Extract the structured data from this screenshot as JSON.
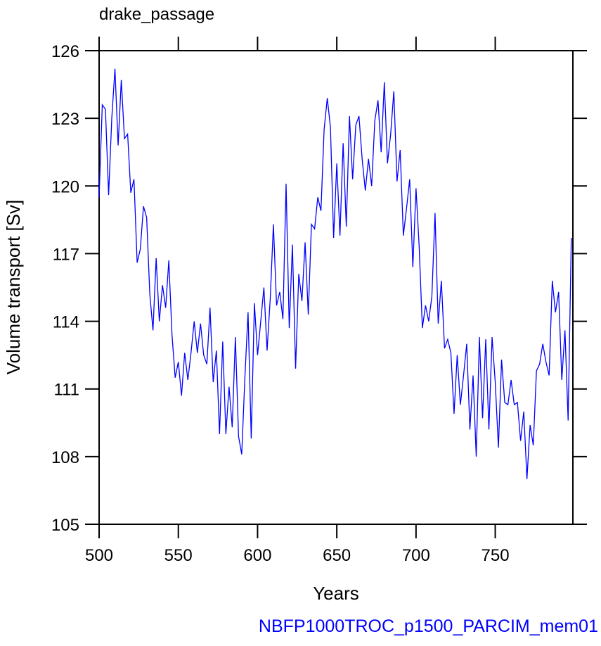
{
  "chart_data": {
    "type": "line",
    "title": "drake_passage",
    "xlabel": "Years",
    "ylabel": "Volume transport [Sv]",
    "annotation": "NBFP1000TROC_p1500_PARCIM_mem01",
    "xlim": [
      500,
      799
    ],
    "ylim": [
      105,
      126
    ],
    "xticks": [
      500,
      550,
      600,
      650,
      700,
      750
    ],
    "yticks": [
      105,
      108,
      111,
      114,
      117,
      120,
      123,
      126
    ],
    "x": [
      500,
      502,
      504,
      506,
      508,
      510,
      512,
      514,
      516,
      518,
      520,
      522,
      524,
      526,
      528,
      530,
      532,
      534,
      536,
      538,
      540,
      542,
      544,
      546,
      548,
      550,
      552,
      554,
      556,
      558,
      560,
      562,
      564,
      566,
      568,
      570,
      572,
      574,
      576,
      578,
      580,
      582,
      584,
      586,
      588,
      590,
      592,
      594,
      596,
      598,
      600,
      602,
      604,
      606,
      608,
      610,
      612,
      614,
      616,
      618,
      620,
      622,
      624,
      626,
      628,
      630,
      632,
      634,
      636,
      638,
      640,
      642,
      644,
      646,
      648,
      650,
      652,
      654,
      656,
      658,
      660,
      662,
      664,
      666,
      668,
      670,
      672,
      674,
      676,
      678,
      680,
      682,
      684,
      686,
      688,
      690,
      692,
      694,
      696,
      698,
      700,
      702,
      704,
      706,
      708,
      710,
      712,
      714,
      716,
      718,
      720,
      722,
      724,
      726,
      728,
      730,
      732,
      734,
      736,
      738,
      740,
      742,
      744,
      746,
      748,
      750,
      752,
      754,
      756,
      758,
      760,
      762,
      764,
      766,
      768,
      770,
      772,
      774,
      776,
      778,
      780,
      782,
      784,
      786,
      788,
      790,
      792,
      794,
      796,
      798
    ],
    "series": [
      {
        "color": "#0000ff",
        "values": [
          119.5,
          123.6,
          123.4,
          119.6,
          123.0,
          125.2,
          121.8,
          124.7,
          122.1,
          122.3,
          119.7,
          120.3,
          116.6,
          117.2,
          119.1,
          118.6,
          115.2,
          113.6,
          116.8,
          114.0,
          115.6,
          114.6,
          116.7,
          113.4,
          111.5,
          112.2,
          110.7,
          112.6,
          111.4,
          112.6,
          114.0,
          112.6,
          113.9,
          112.5,
          112.1,
          114.6,
          111.3,
          112.7,
          109.0,
          113.1,
          109.0,
          111.1,
          109.3,
          113.3,
          108.9,
          108.1,
          111.5,
          114.4,
          108.8,
          114.8,
          112.5,
          114.0,
          115.5,
          112.7,
          115.0,
          118.3,
          114.7,
          115.3,
          114.1,
          120.1,
          113.7,
          117.4,
          111.9,
          116.1,
          114.9,
          117.5,
          114.3,
          118.3,
          118.1,
          119.5,
          118.9,
          122.5,
          123.9,
          122.6,
          117.7,
          121.0,
          117.8,
          121.9,
          118.2,
          123.1,
          120.3,
          122.7,
          123.1,
          121.2,
          119.8,
          121.2,
          120.0,
          122.9,
          123.8,
          121.5,
          124.6,
          121.0,
          122.3,
          124.2,
          120.2,
          121.6,
          117.8,
          119.0,
          120.3,
          116.4,
          119.9,
          117.3,
          113.7,
          114.7,
          114.0,
          115.1,
          118.8,
          113.9,
          115.8,
          112.8,
          113.2,
          112.6,
          109.9,
          112.5,
          110.3,
          111.6,
          113.0,
          109.2,
          111.6,
          108.0,
          113.3,
          109.7,
          113.2,
          109.2,
          113.3,
          111.3,
          108.4,
          112.3,
          110.4,
          110.3,
          111.4,
          110.3,
          110.4,
          108.7,
          110.0,
          107.0,
          109.4,
          108.5,
          111.8,
          112.1,
          113.0,
          112.2,
          111.6,
          115.8,
          114.4,
          115.3,
          111.4,
          113.6,
          109.6,
          117.7
        ]
      }
    ]
  }
}
